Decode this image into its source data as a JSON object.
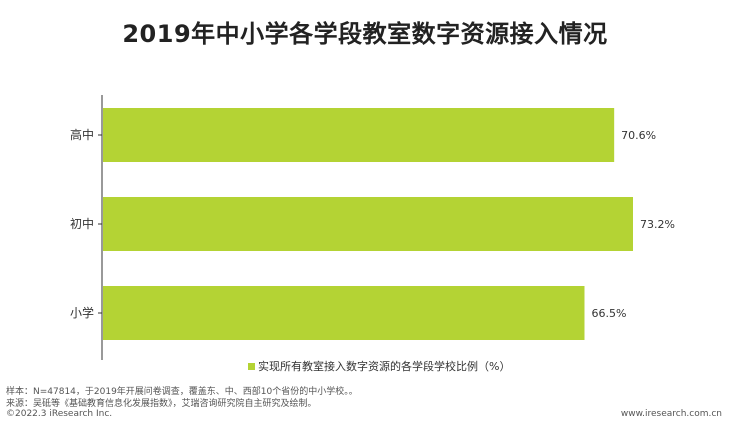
{
  "chart_data": {
    "type": "bar",
    "orientation": "horizontal",
    "title": "2019年中小学各学段教室数字资源接入情况",
    "categories": [
      "高中",
      "初中",
      "小学"
    ],
    "series": [
      {
        "name": "实现所有教室接入数字资源的各学段学校比例（%）",
        "values": [
          70.6,
          73.2,
          66.5
        ],
        "labels": [
          "70.6%",
          "73.2%",
          "66.5%"
        ],
        "color": "#B4D334"
      }
    ],
    "xlim": [
      0,
      73.2
    ],
    "grid": false,
    "legend_position": "bottom-center"
  },
  "footer": {
    "sample": "样本：N=47814，于2019年开展问卷调查，覆盖东、中、西部10个省份的中小学校。。",
    "source": "来源：吴砥等《基础教育信息化发展指数》，艾瑞咨询研究院自主研究及绘制。",
    "copyright": "©2022.3 iResearch Inc.",
    "website": "www.iresearch.com.cn"
  },
  "colors": {
    "bar": "#B4D334",
    "axis": "#333333"
  }
}
